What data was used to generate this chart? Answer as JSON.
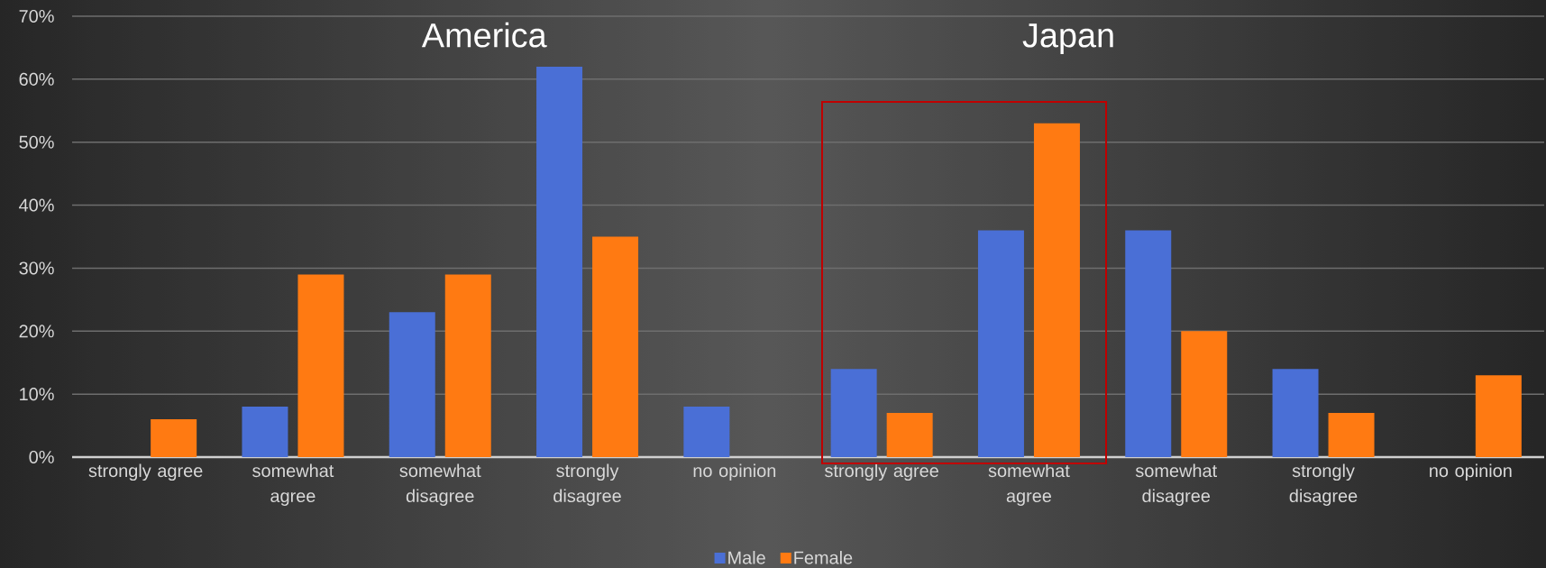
{
  "chart_data": {
    "type": "bar",
    "categories": [
      "strongly agree",
      "somewhat agree",
      "somewhat disagree",
      "strongly disagree",
      "no opinion",
      "strongly agree",
      "somewhat agree",
      "somewhat disagree",
      "strongly disagree",
      "no opinion"
    ],
    "series": [
      {
        "name": "Male",
        "color": "#4a6fd6",
        "values": [
          0,
          8,
          23,
          62,
          8,
          14,
          36,
          36,
          14,
          0
        ]
      },
      {
        "name": "Female",
        "color": "#ff7a12",
        "values": [
          6,
          29,
          29,
          35,
          0,
          7,
          53,
          20,
          7,
          13
        ]
      }
    ],
    "ylim": [
      0,
      70
    ],
    "yticks": [
      {
        "value": 0,
        "label": "0%"
      },
      {
        "value": 10,
        "label": "10%"
      },
      {
        "value": 20,
        "label": "20%"
      },
      {
        "value": 30,
        "label": "30%"
      },
      {
        "value": 40,
        "label": "40%"
      },
      {
        "value": 50,
        "label": "50%"
      },
      {
        "value": 60,
        "label": "60%"
      },
      {
        "value": 70,
        "label": "70%"
      }
    ],
    "grid": "y",
    "legend": "bottom",
    "annotations": [
      "America",
      "Japan"
    ]
  }
}
